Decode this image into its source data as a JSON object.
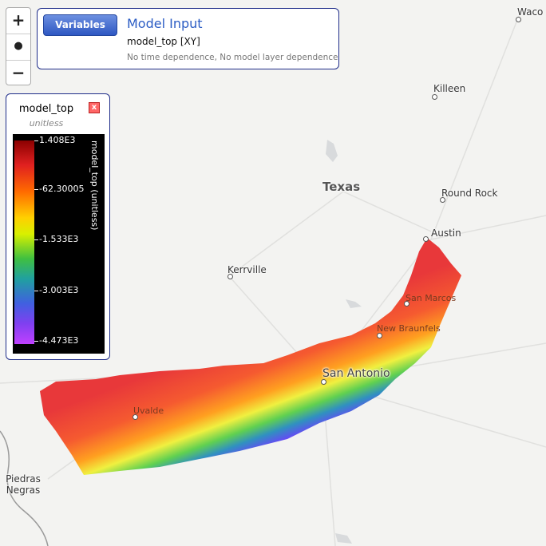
{
  "zoom": {
    "in": "+",
    "out": "−"
  },
  "info_panel": {
    "button": "Variables",
    "title": "Model Input",
    "variable": "model_top [XY]",
    "note": "No time dependence, No model layer dependence"
  },
  "legend": {
    "title": "model_top",
    "units": "unitless",
    "axis_label": "model_top (unitless)",
    "ticks": [
      "1.408E3",
      "-62.30005",
      "-1.533E3",
      "-3.003E3",
      "-4.473E3"
    ]
  },
  "map_labels": [
    "Waco",
    "Killeen",
    "Texas",
    "Round Rock",
    "Austin",
    "Kerrville",
    "San Marcos",
    "New Braunfels",
    "San Antonio",
    "Uvalde",
    "Piedras Negras"
  ]
}
